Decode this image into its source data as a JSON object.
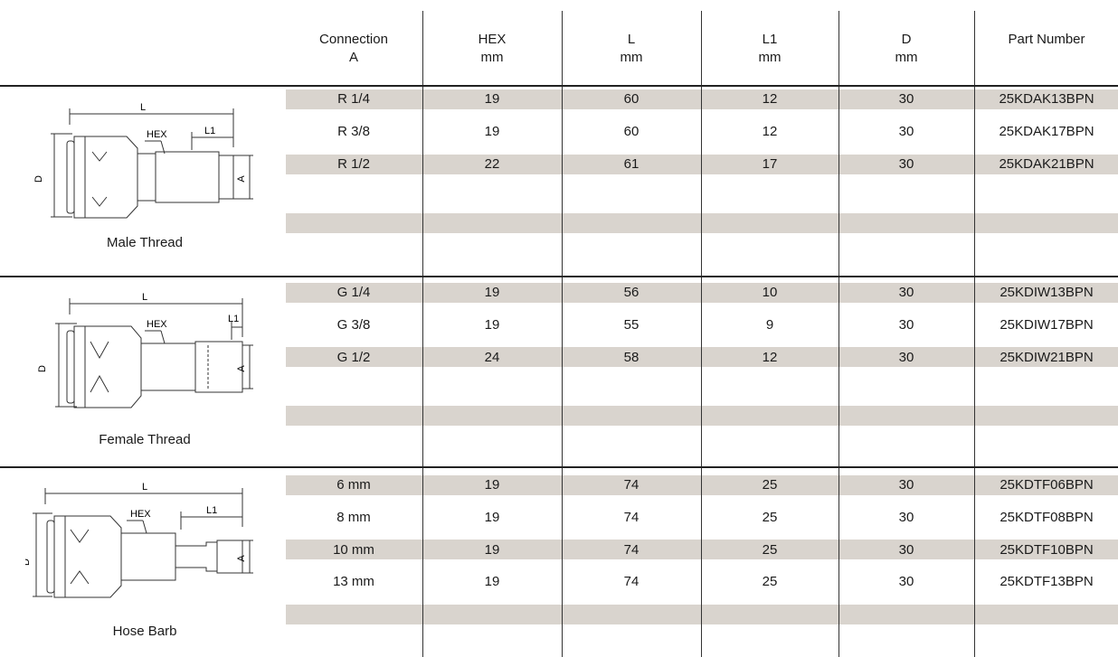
{
  "columns": [
    {
      "key": "connection",
      "label": "Connection\nA"
    },
    {
      "key": "hex",
      "label": "HEX\nmm"
    },
    {
      "key": "l",
      "label": "L\nmm"
    },
    {
      "key": "l1",
      "label": "L1\nmm"
    },
    {
      "key": "d",
      "label": "D\nmm"
    },
    {
      "key": "part",
      "label": "Part Number"
    }
  ],
  "diagram_labels": {
    "l": "L",
    "l1": "L1",
    "hex": "HEX",
    "d": "D",
    "a": "A"
  },
  "groups": [
    {
      "name": "Male Thread",
      "rows": [
        [
          "R 1/4",
          "19",
          "60",
          "12",
          "30",
          "25KDAK13BPN"
        ],
        [
          "R 3/8",
          "19",
          "60",
          "12",
          "30",
          "25KDAK17BPN"
        ],
        [
          "R 1/2",
          "22",
          "61",
          "17",
          "30",
          "25KDAK21BPN"
        ],
        [
          "",
          "",
          "",
          "",
          "",
          ""
        ],
        [
          "",
          "",
          "",
          "",
          "",
          ""
        ],
        [
          "",
          "",
          "",
          "",
          "",
          ""
        ]
      ]
    },
    {
      "name": "Female Thread",
      "rows": [
        [
          "G 1/4",
          "19",
          "56",
          "10",
          "30",
          "25KDIW13BPN"
        ],
        [
          "G 3/8",
          "19",
          "55",
          "9",
          "30",
          "25KDIW17BPN"
        ],
        [
          "G 1/2",
          "24",
          "58",
          "12",
          "30",
          "25KDIW21BPN"
        ],
        [
          "",
          "",
          "",
          "",
          "",
          ""
        ],
        [
          "",
          "",
          "",
          "",
          "",
          ""
        ],
        [
          "",
          "",
          "",
          "",
          "",
          ""
        ]
      ]
    },
    {
      "name": "Hose Barb",
      "rows": [
        [
          "6 mm",
          "19",
          "74",
          "25",
          "30",
          "25KDTF06BPN"
        ],
        [
          "8 mm",
          "19",
          "74",
          "25",
          "30",
          "25KDTF08BPN"
        ],
        [
          "10 mm",
          "19",
          "74",
          "25",
          "30",
          "25KDTF10BPN"
        ],
        [
          "13 mm",
          "19",
          "74",
          "25",
          "30",
          "25KDTF13BPN"
        ],
        [
          "",
          "",
          "",
          "",
          "",
          ""
        ],
        [
          "",
          "",
          "",
          "",
          "",
          ""
        ]
      ]
    }
  ],
  "colors": {
    "band": "#d9d4ce",
    "rule": "#222222"
  }
}
